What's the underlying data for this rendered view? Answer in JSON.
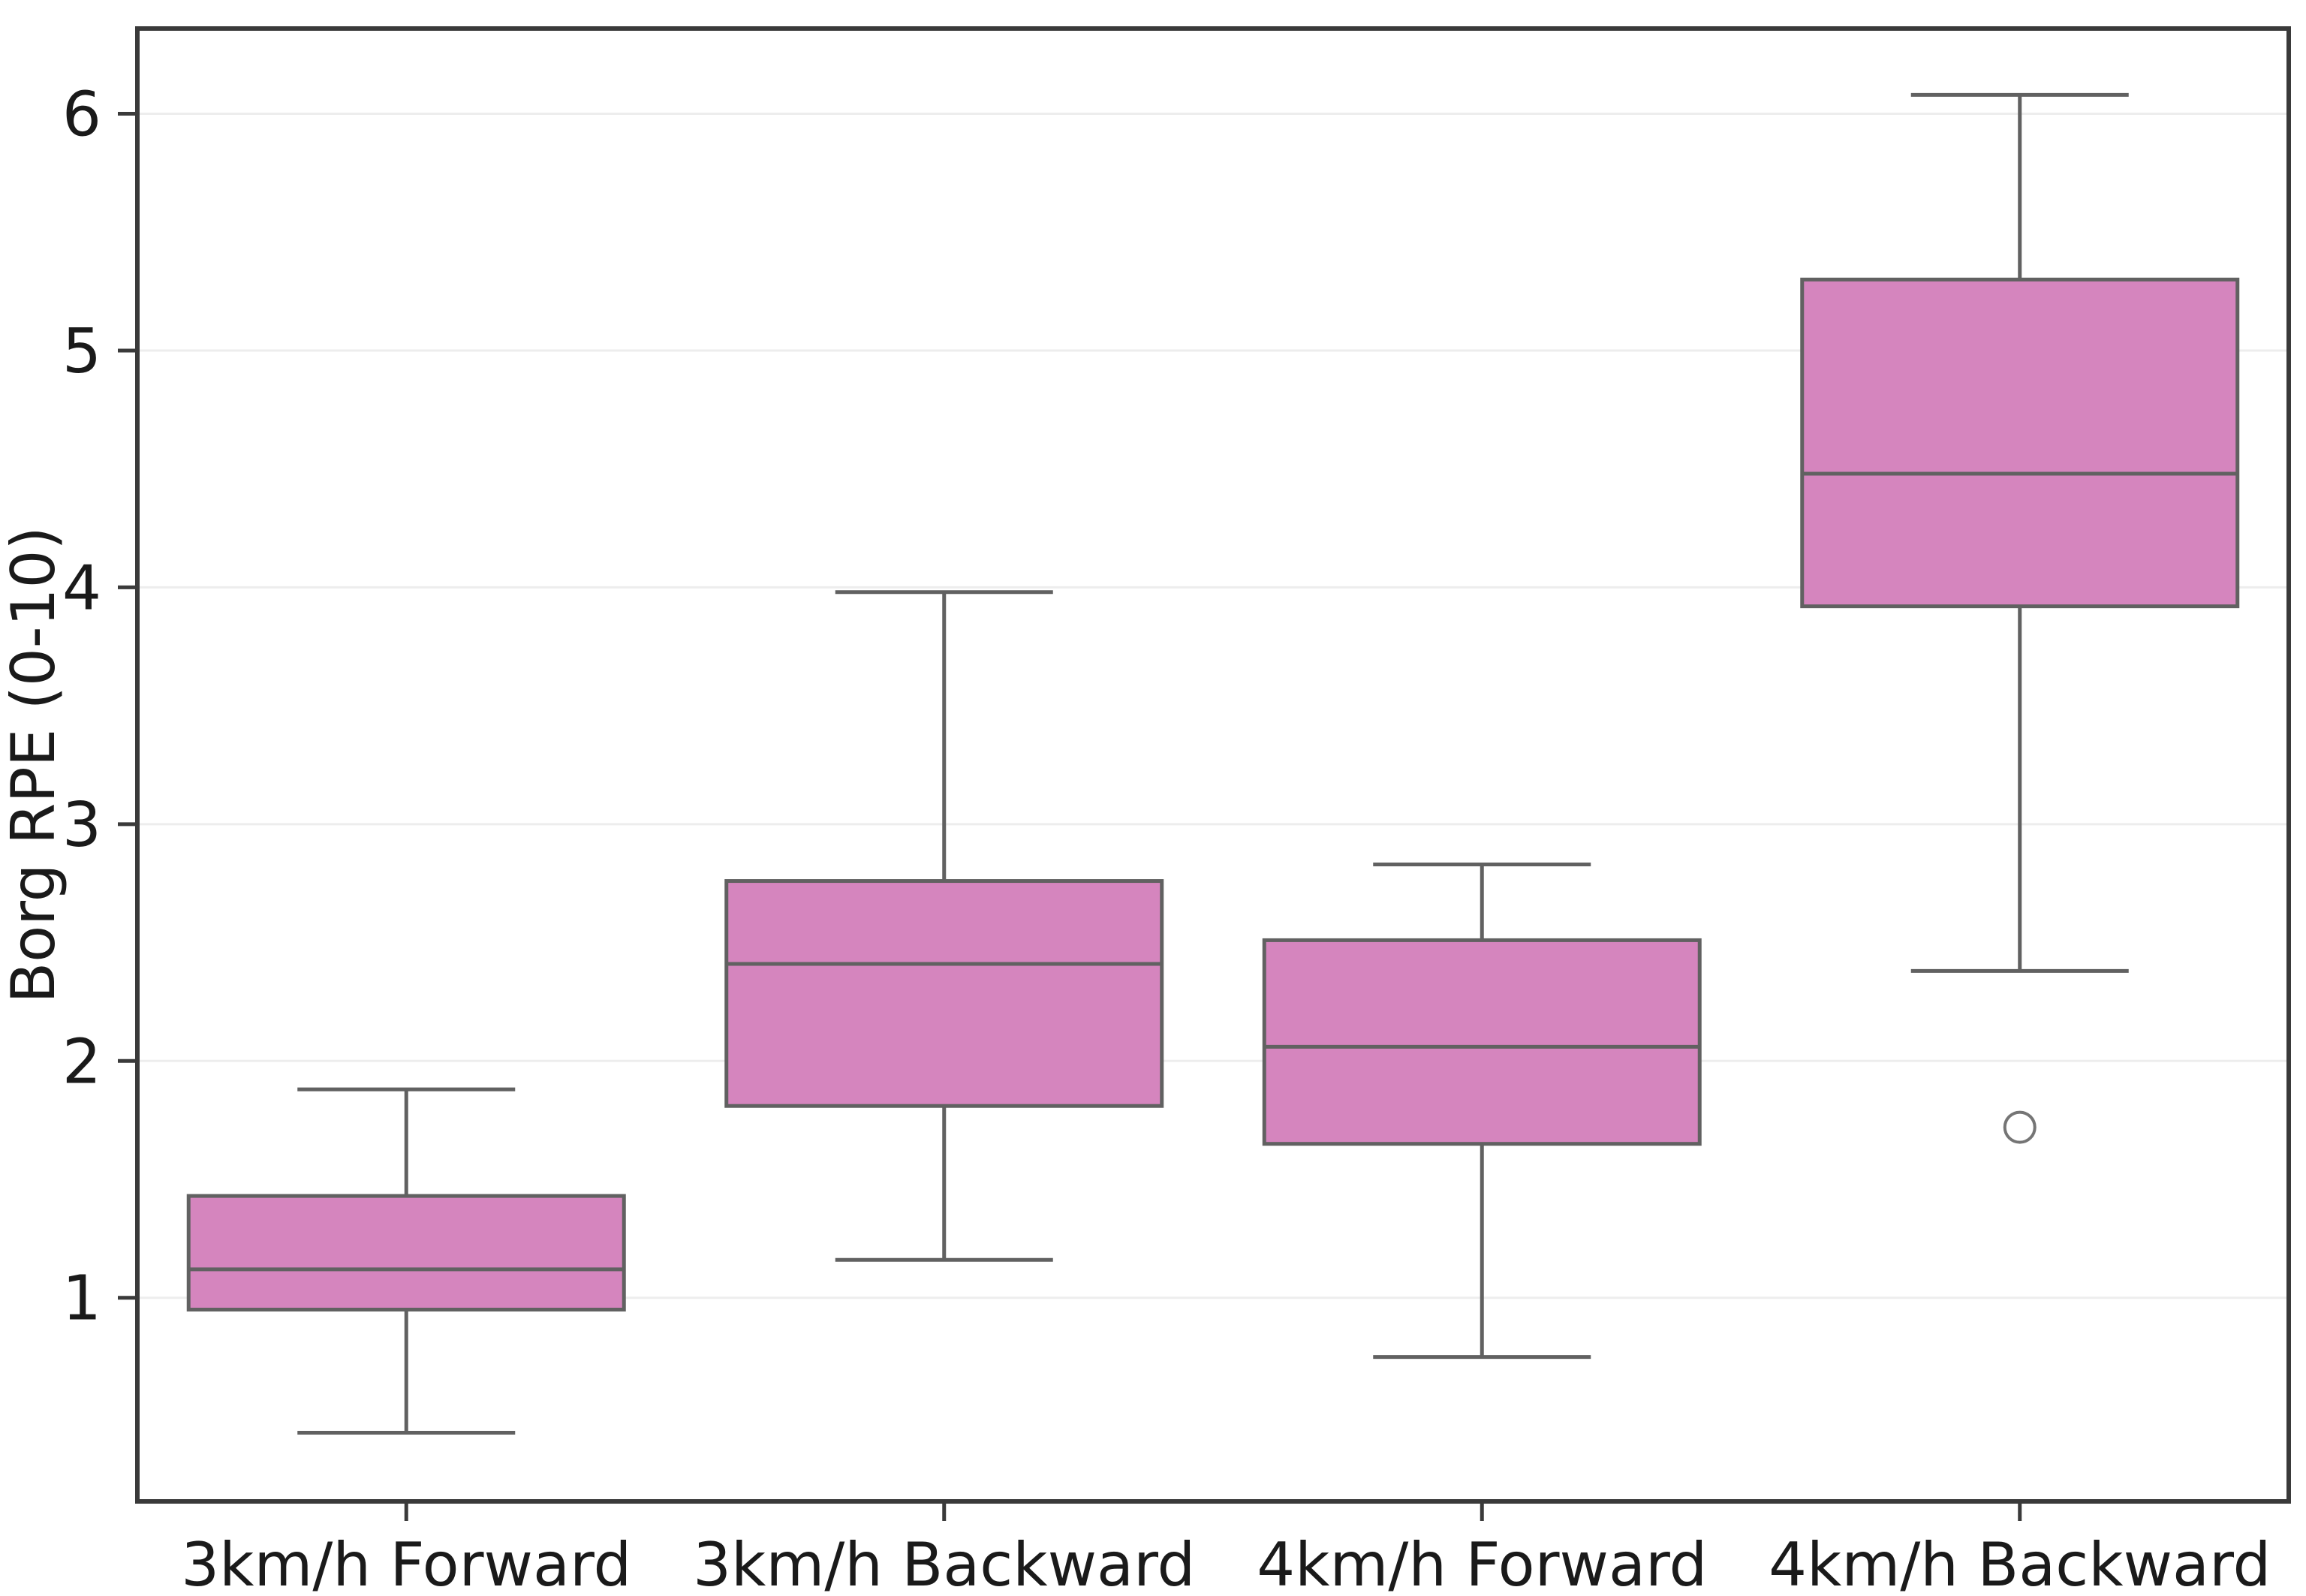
{
  "figure": {
    "background": "#ffffff",
    "title": ""
  },
  "chart_data": {
    "type": "boxplot",
    "title": "",
    "xlabel": "",
    "ylabel": "Borg RPE (0-10)",
    "categories": [
      "3km/h Forward",
      "3km/h Backward",
      "4km/h Forward",
      "4km/h Backward"
    ],
    "series": [
      {
        "label": "3km/h Forward",
        "whislo": 0.43,
        "q1": 0.95,
        "med": 1.12,
        "q3": 1.43,
        "whishi": 1.88,
        "outliers": []
      },
      {
        "label": "3km/h Backward",
        "whislo": 1.16,
        "q1": 1.81,
        "med": 2.41,
        "q3": 2.76,
        "whishi": 3.98,
        "outliers": []
      },
      {
        "label": "4km/h Forward",
        "whislo": 0.75,
        "q1": 1.65,
        "med": 2.06,
        "q3": 2.51,
        "whishi": 2.83,
        "outliers": []
      },
      {
        "label": "4km/h Backward",
        "whislo": 2.38,
        "q1": 3.92,
        "med": 4.48,
        "q3": 5.3,
        "whishi": 6.08,
        "outliers": [
          1.72
        ]
      }
    ],
    "yticks": [
      1,
      2,
      3,
      4,
      5,
      6
    ],
    "ylim": [
      0.14,
      6.36
    ],
    "grid": "horizontal",
    "legend": null
  },
  "style": {
    "box_fill": "#D585BE",
    "box_edge": "#616161",
    "median_color": "#616161",
    "whisker_color": "#616161",
    "outlier_color": "#757575",
    "spine_color": "#3A3A3A",
    "grid_color": "#EDEDED",
    "text_color": "#1A1A1A",
    "background": "#FFFFFF"
  }
}
